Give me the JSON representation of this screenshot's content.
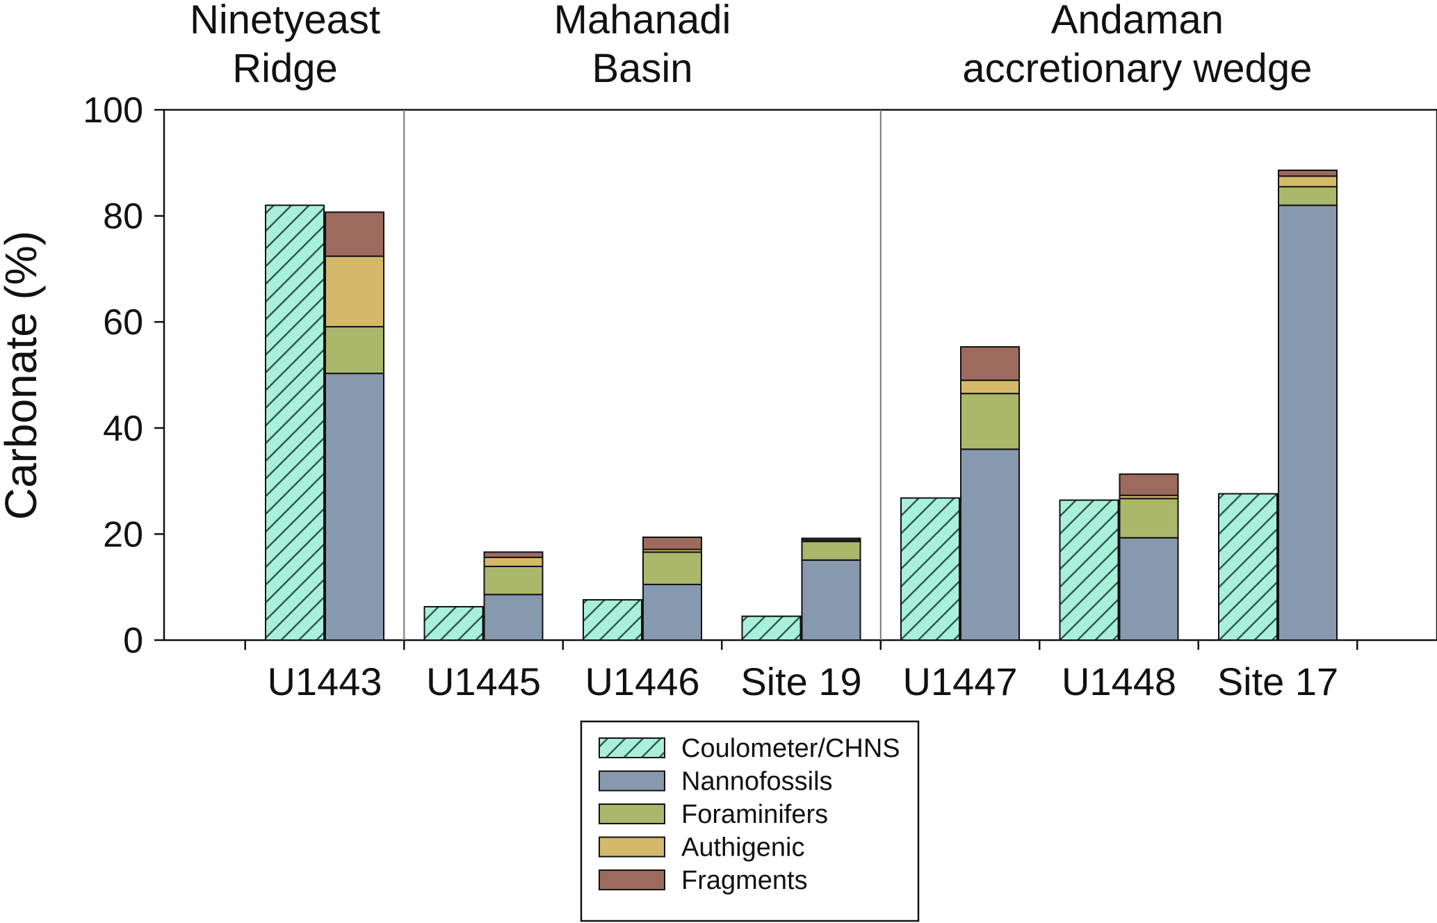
{
  "chart_data": {
    "type": "bar",
    "title": "",
    "xlabel": "",
    "ylabel": "Carbonate (%)",
    "ylim": [
      0,
      100
    ],
    "yticks": [
      0,
      20,
      40,
      60,
      80,
      100
    ],
    "grid": false,
    "legend_position": "bottom-center",
    "regions": [
      {
        "label_lines": [
          "Ninetyeast",
          "Ridge"
        ],
        "categories": [
          "U1443"
        ]
      },
      {
        "label_lines": [
          "Mahanadi",
          "Basin"
        ],
        "categories": [
          "U1445",
          "U1446",
          "Site 19"
        ]
      },
      {
        "label_lines": [
          "Andaman",
          "accretionary wedge"
        ],
        "categories": [
          "U1447",
          "U1448",
          "Site 17"
        ]
      }
    ],
    "categories": [
      "U1443",
      "U1445",
      "U1446",
      "Site 19",
      "U1447",
      "U1448",
      "Site 17"
    ],
    "measured": {
      "name": "Coulometer/CHNS",
      "color": "#a8f0dc",
      "hatch_color": "#2f5a4a",
      "values": [
        82,
        6.3,
        7.6,
        4.5,
        26.8,
        26.4,
        27.6
      ]
    },
    "stacked_series": [
      {
        "name": "Nannofossils",
        "color": "#8799af",
        "values": [
          50.3,
          8.6,
          10.5,
          15.1,
          36.0,
          19.3,
          82.0
        ]
      },
      {
        "name": "Foraminifers",
        "color": "#abb86b",
        "values": [
          8.8,
          5.3,
          6.1,
          3.5,
          10.5,
          7.4,
          3.5
        ]
      },
      {
        "name": "Authigenic",
        "color": "#d4b96a",
        "values": [
          13.3,
          1.7,
          0.5,
          0.3,
          2.5,
          0.6,
          2.0
        ]
      },
      {
        "name": "Fragments",
        "color": "#9c6b5e",
        "values": [
          8.3,
          1.0,
          2.3,
          0.3,
          6.3,
          4.0,
          1.1
        ]
      }
    ]
  }
}
